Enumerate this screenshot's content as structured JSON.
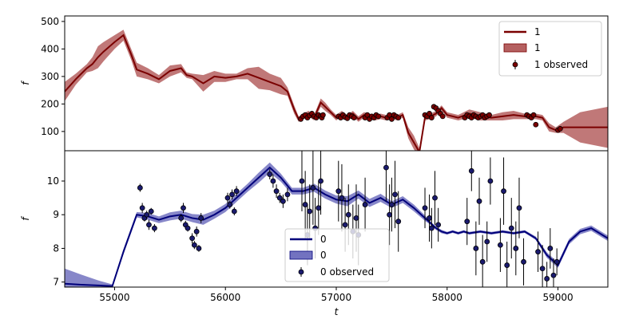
{
  "chart_data": [
    {
      "type": "line",
      "panel": "top",
      "xlabel": "",
      "ylabel": "f",
      "xlim": [
        54550,
        59450
      ],
      "ylim": [
        30,
        520
      ],
      "yticks": [
        100,
        200,
        300,
        400,
        500
      ],
      "legend": {
        "placement": "top-right",
        "entries": [
          "1",
          "1",
          "1 observed"
        ]
      },
      "colors": {
        "line": "#7a0000",
        "band": "#b56060",
        "points": "#7a0000"
      },
      "series": [
        {
          "name": "1",
          "kind": "line_with_band",
          "x": [
            54550,
            54650,
            54750,
            54800,
            54850,
            54900,
            55000,
            55080,
            55150,
            55200,
            55300,
            55400,
            55500,
            55600,
            55650,
            55700,
            55800,
            55900,
            56000,
            56100,
            56200,
            56300,
            56400,
            56500,
            56560,
            56620,
            56660,
            56700,
            56750,
            56800,
            56860,
            56900,
            56950,
            57000,
            57050,
            57100,
            57150,
            57200,
            57250,
            57300,
            57350,
            57400,
            57450,
            57500,
            57550,
            57600,
            57650,
            57700,
            57750,
            57800,
            57850,
            57900,
            57950,
            58000,
            58100,
            58200,
            58300,
            58400,
            58500,
            58600,
            58700,
            58800,
            58860,
            58920,
            58980,
            59050,
            59200,
            59450
          ],
          "y": [
            245,
            290,
            330,
            345,
            370,
            390,
            425,
            450,
            380,
            325,
            310,
            290,
            320,
            330,
            305,
            300,
            275,
            300,
            295,
            300,
            310,
            295,
            280,
            265,
            245,
            180,
            145,
            155,
            165,
            150,
            205,
            190,
            170,
            150,
            165,
            150,
            165,
            145,
            160,
            155,
            150,
            155,
            150,
            155,
            150,
            160,
            95,
            60,
            25,
            150,
            155,
            165,
            185,
            160,
            150,
            165,
            155,
            150,
            155,
            160,
            155,
            155,
            150,
            115,
            105,
            115,
            115,
            115
          ],
          "band_halfwidth": [
            35,
            20,
            15,
            25,
            40,
            35,
            25,
            20,
            20,
            25,
            20,
            15,
            20,
            15,
            10,
            10,
            30,
            20,
            15,
            10,
            20,
            40,
            30,
            30,
            15,
            15,
            10,
            10,
            10,
            10,
            15,
            15,
            10,
            10,
            10,
            10,
            10,
            10,
            10,
            10,
            10,
            10,
            10,
            10,
            10,
            10,
            20,
            25,
            15,
            10,
            10,
            10,
            10,
            10,
            10,
            15,
            15,
            10,
            15,
            15,
            10,
            10,
            10,
            15,
            10,
            20,
            55,
            75
          ]
        },
        {
          "name": "1 observed",
          "kind": "points",
          "x": [
            56680,
            56700,
            56720,
            56740,
            56760,
            56780,
            56800,
            56820,
            56840,
            56860,
            56870,
            56880,
            57020,
            57040,
            57060,
            57080,
            57100,
            57120,
            57140,
            57160,
            57260,
            57280,
            57300,
            57320,
            57340,
            57360,
            57380,
            57460,
            57480,
            57500,
            57520,
            57540,
            57560,
            57800,
            57820,
            57840,
            57860,
            57880,
            57900,
            57920,
            57940,
            57960,
            58160,
            58180,
            58200,
            58220,
            58240,
            58260,
            58280,
            58300,
            58320,
            58340,
            58360,
            58380,
            58720,
            58740,
            58760,
            58780,
            58800,
            59000,
            59020
          ],
          "y": [
            145,
            155,
            160,
            150,
            158,
            165,
            155,
            150,
            160,
            155,
            150,
            160,
            155,
            150,
            160,
            152,
            148,
            160,
            155,
            150,
            150,
            160,
            145,
            155,
            150,
            160,
            155,
            150,
            160,
            145,
            160,
            155,
            150,
            160,
            155,
            165,
            150,
            190,
            185,
            175,
            165,
            155,
            150,
            160,
            155,
            150,
            160,
            155,
            150,
            155,
            160,
            150,
            155,
            160,
            160,
            155,
            150,
            160,
            125,
            105,
            110
          ]
        }
      ]
    },
    {
      "type": "line",
      "panel": "bottom",
      "xlabel": "t",
      "ylabel": "f",
      "xlim": [
        54550,
        59450
      ],
      "ylim": [
        6.85,
        10.9
      ],
      "yticks": [
        7,
        8,
        9,
        10
      ],
      "xticks": [
        55000,
        56000,
        57000,
        58000,
        59000
      ],
      "legend": {
        "placement": "lower-center",
        "entries": [
          "0",
          "0",
          "0 observed"
        ]
      },
      "colors": {
        "line": "#00007a",
        "band": "#7272c0",
        "points": "#1a1a6e",
        "errorbars": "#000000"
      },
      "series": [
        {
          "name": "0",
          "kind": "line_with_band",
          "x": [
            54550,
            54700,
            54850,
            54980,
            55080,
            55200,
            55300,
            55400,
            55500,
            55600,
            55700,
            55800,
            55900,
            56000,
            56100,
            56200,
            56300,
            56400,
            56500,
            56600,
            56700,
            56800,
            56900,
            57000,
            57100,
            57200,
            57300,
            57400,
            57500,
            57600,
            57700,
            57800,
            57850,
            57900,
            57950,
            58000,
            58050,
            58100,
            58150,
            58200,
            58300,
            58400,
            58500,
            58600,
            58700,
            58800,
            58900,
            59000,
            59100,
            59200,
            59300,
            59450
          ],
          "y": [
            6.95,
            6.92,
            6.9,
            6.88,
            7.9,
            9.0,
            8.95,
            8.85,
            8.95,
            9.0,
            8.9,
            8.85,
            9.0,
            9.2,
            9.5,
            9.8,
            10.1,
            10.4,
            10.1,
            9.7,
            9.7,
            9.8,
            9.6,
            9.45,
            9.4,
            9.6,
            9.35,
            9.5,
            9.3,
            9.45,
            9.2,
            8.9,
            8.75,
            8.6,
            8.5,
            8.45,
            8.5,
            8.45,
            8.5,
            8.45,
            8.5,
            8.45,
            8.5,
            8.45,
            8.5,
            8.3,
            7.8,
            7.5,
            8.2,
            8.5,
            8.6,
            8.3
          ],
          "band_halfwidth": [
            0.45,
            0.3,
            0.15,
            0.05,
            0.08,
            0.08,
            0.1,
            0.1,
            0.12,
            0.12,
            0.12,
            0.15,
            0.12,
            0.12,
            0.12,
            0.12,
            0.15,
            0.15,
            0.12,
            0.1,
            0.1,
            0.12,
            0.12,
            0.12,
            0.15,
            0.12,
            0.12,
            0.12,
            0.1,
            0.1,
            0.1,
            0.08,
            0.05,
            0.05,
            0.05,
            0.04,
            0.04,
            0.04,
            0.04,
            0.04,
            0.04,
            0.04,
            0.04,
            0.04,
            0.04,
            0.05,
            0.08,
            0.08,
            0.08,
            0.08,
            0.08,
            0.08
          ]
        },
        {
          "name": "0 observed",
          "kind": "points_with_errorbars",
          "x": [
            55230,
            55250,
            55270,
            55290,
            55310,
            55330,
            55360,
            55600,
            55620,
            55640,
            55660,
            55700,
            55720,
            55740,
            55760,
            55780,
            56020,
            56040,
            56060,
            56080,
            56100,
            56400,
            56430,
            56460,
            56490,
            56520,
            56560,
            56690,
            56720,
            56740,
            56760,
            56790,
            56810,
            56840,
            56860,
            57020,
            57050,
            57080,
            57110,
            57150,
            57180,
            57200,
            57260,
            57450,
            57480,
            57500,
            57530,
            57560,
            57800,
            57840,
            57860,
            57890,
            57920,
            58180,
            58220,
            58260,
            58290,
            58320,
            58360,
            58390,
            58480,
            58510,
            58540,
            58580,
            58620,
            58650,
            58690,
            58820,
            58860,
            58900,
            58930,
            58960,
            58990
          ],
          "y": [
            9.8,
            9.2,
            8.9,
            9.0,
            8.7,
            9.1,
            8.6,
            8.9,
            9.2,
            8.7,
            8.6,
            8.3,
            8.1,
            8.5,
            8.0,
            8.9,
            9.5,
            9.3,
            9.6,
            9.1,
            9.7,
            10.2,
            10.0,
            9.7,
            9.5,
            9.4,
            9.6,
            10.0,
            9.3,
            8.4,
            9.1,
            9.8,
            8.6,
            9.2,
            10.0,
            9.7,
            9.5,
            8.7,
            9.0,
            8.5,
            8.9,
            8.4,
            9.3,
            10.4,
            9.0,
            9.3,
            9.6,
            8.8,
            9.2,
            8.9,
            8.6,
            9.5,
            8.7,
            8.8,
            10.3,
            8.0,
            9.4,
            7.6,
            8.2,
            10.0,
            8.1,
            9.7,
            7.5,
            8.6,
            8.0,
            9.2,
            7.6,
            7.9,
            7.4,
            7.1,
            8.0,
            7.2,
            7.6
          ],
          "err": [
            0.12,
            0.15,
            0.1,
            0.12,
            0.15,
            0.1,
            0.12,
            0.12,
            0.15,
            0.12,
            0.1,
            0.15,
            0.12,
            0.15,
            0.1,
            0.15,
            0.15,
            0.12,
            0.15,
            0.12,
            0.15,
            0.15,
            0.2,
            0.2,
            0.15,
            0.2,
            0.2,
            0.9,
            1.0,
            0.9,
            0.8,
            1.1,
            0.9,
            0.8,
            1.0,
            0.9,
            1.0,
            0.8,
            0.9,
            0.8,
            1.0,
            0.9,
            0.8,
            1.0,
            0.9,
            0.8,
            1.0,
            0.9,
            0.6,
            0.7,
            0.6,
            0.8,
            0.5,
            0.7,
            0.6,
            0.8,
            0.7,
            0.8,
            0.6,
            0.7,
            0.8,
            1.0,
            0.7,
            0.9,
            0.8,
            0.9,
            0.7,
            0.6,
            0.7,
            0.5,
            0.6,
            0.5,
            0.4
          ]
        }
      ]
    }
  ]
}
